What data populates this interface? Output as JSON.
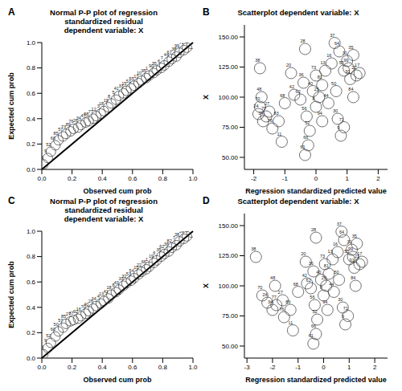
{
  "chart_data": [
    {
      "type": "scatter",
      "panel": "A",
      "title": [
        "Normal P-P plot of regression",
        "standardized residual",
        "dependent variable: X"
      ],
      "x_label": "Observed cum prob",
      "y_label": "Expected cum prob",
      "xlim": [
        0,
        1
      ],
      "ylim": [
        0,
        1
      ],
      "xticks": [
        {
          "value": 0,
          "label": "0.0"
        },
        {
          "value": 0.2,
          "label": "0.2"
        },
        {
          "value": 0.4,
          "label": "0.4"
        },
        {
          "value": 0.6,
          "label": "0.6"
        },
        {
          "value": 0.8,
          "label": "0.8"
        },
        {
          "value": 1,
          "label": "1.0"
        }
      ],
      "yticks": [
        {
          "value": 0,
          "label": "0.0"
        },
        {
          "value": 0.2,
          "label": "0.2"
        },
        {
          "value": 0.4,
          "label": "0.4"
        },
        {
          "value": 0.6,
          "label": "0.6"
        },
        {
          "value": 0.8,
          "label": "0.8"
        },
        {
          "value": 1,
          "label": "1.0"
        }
      ],
      "reference_line": {
        "x": [
          0,
          1
        ],
        "y": [
          0,
          1
        ]
      },
      "x": [
        0.01,
        0.04,
        0.06,
        0.09,
        0.11,
        0.14,
        0.16,
        0.19,
        0.21,
        0.24,
        0.26,
        0.29,
        0.31,
        0.34,
        0.36,
        0.39,
        0.41,
        0.44,
        0.46,
        0.49,
        0.51,
        0.54,
        0.56,
        0.59,
        0.61,
        0.64,
        0.66,
        0.69,
        0.71,
        0.74,
        0.76,
        0.79,
        0.81,
        0.84,
        0.86,
        0.89,
        0.91,
        0.94,
        0.96,
        0.99
      ],
      "y": [
        0.04,
        0.09,
        0.14,
        0.19,
        0.23,
        0.26,
        0.28,
        0.3,
        0.32,
        0.33,
        0.35,
        0.37,
        0.38,
        0.4,
        0.42,
        0.44,
        0.46,
        0.49,
        0.52,
        0.55,
        0.58,
        0.6,
        0.62,
        0.64,
        0.66,
        0.68,
        0.7,
        0.72,
        0.74,
        0.76,
        0.78,
        0.8,
        0.82,
        0.85,
        0.87,
        0.89,
        0.92,
        0.94,
        0.96,
        0.99
      ],
      "point_labels": [
        "46",
        "9",
        "52",
        "60",
        "85",
        "57",
        "73",
        "89",
        "76",
        "26",
        "34",
        "47",
        "58",
        "77",
        "12",
        "3",
        "18",
        "19",
        "8",
        "5",
        "41",
        "33",
        "15",
        "51",
        "55",
        "17",
        "10",
        "95",
        "1",
        "90",
        "35",
        "6",
        "7",
        "44",
        "67",
        "38",
        "99",
        "72",
        "29",
        "28"
      ]
    },
    {
      "type": "scatter",
      "panel": "B",
      "title": [
        "Scatterplot dependent variable: X"
      ],
      "x_label": "Regression standardized predicted value",
      "y_label": "X",
      "xlim": [
        -2.3,
        2.3
      ],
      "ylim": [
        40,
        160
      ],
      "xticks": [
        -2,
        -1,
        0,
        1,
        2
      ],
      "yticks": [
        {
          "value": 50,
          "label": "50.00"
        },
        {
          "value": 75,
          "label": "75.00"
        },
        {
          "value": 100,
          "label": "100.00"
        },
        {
          "value": 125,
          "label": "125.00"
        },
        {
          "value": 150,
          "label": "150.00"
        }
      ],
      "x": [
        -1.8,
        -1.75,
        -1.8,
        -1.85,
        -1.7,
        -1.6,
        -1.5,
        -1.4,
        -1.2,
        -1.1,
        -1.0,
        -0.8,
        -0.7,
        -0.5,
        -0.4,
        -0.35,
        -0.3,
        -0.2,
        -0.25,
        -0.35,
        -0.1,
        0.0,
        0.0,
        0.1,
        0.2,
        0.2,
        0.3,
        0.4,
        0.5,
        0.6,
        0.65,
        0.7,
        0.8,
        0.9,
        1.0,
        1.1,
        1.2,
        1.3,
        1.2,
        0.9,
        1.4,
        0.75,
        1.05
      ],
      "y": [
        124,
        100,
        92,
        86,
        80,
        84,
        88,
        74,
        80,
        63,
        95,
        120,
        102,
        98,
        112,
        140,
        84,
        72,
        60,
        52,
        105,
        92,
        118,
        100,
        110,
        80,
        122,
        95,
        128,
        145,
        105,
        82,
        68,
        122,
        130,
        115,
        135,
        118,
        100,
        75,
        120,
        138,
        124
      ],
      "point_labels": [
        "38",
        "48",
        "70",
        "24",
        "34",
        "77",
        "27",
        "76",
        "83",
        "11",
        "68",
        "20",
        "42",
        "62",
        "36",
        "28",
        "56",
        "52",
        "66",
        "61",
        "40",
        "8",
        "73",
        "25",
        "81",
        "94",
        "13",
        "44",
        "16",
        "37",
        "50",
        "30",
        "9",
        "55",
        "31",
        "91",
        "35",
        "21",
        "84",
        "71",
        "17",
        "64",
        "99"
      ]
    },
    {
      "type": "scatter",
      "panel": "C",
      "title": [
        "Normal P-P plot of regression",
        "standardized residual",
        "dependent variable: X"
      ],
      "x_label": "Observed cum prob",
      "y_label": "Expected cum prob",
      "xlim": [
        0,
        1
      ],
      "ylim": [
        0,
        1
      ],
      "xticks": [
        {
          "value": 0,
          "label": "0.0"
        },
        {
          "value": 0.2,
          "label": "0.2"
        },
        {
          "value": 0.4,
          "label": "0.4"
        },
        {
          "value": 0.6,
          "label": "0.6"
        },
        {
          "value": 0.8,
          "label": "0.8"
        },
        {
          "value": 1,
          "label": "1.0"
        }
      ],
      "yticks": [
        {
          "value": 0,
          "label": "0.0"
        },
        {
          "value": 0.2,
          "label": "0.2"
        },
        {
          "value": 0.4,
          "label": "0.4"
        },
        {
          "value": 0.6,
          "label": "0.6"
        },
        {
          "value": 0.8,
          "label": "0.8"
        },
        {
          "value": 1,
          "label": "1.0"
        }
      ],
      "reference_line": {
        "x": [
          0,
          1
        ],
        "y": [
          0,
          1
        ]
      },
      "x": [
        0.01,
        0.04,
        0.06,
        0.09,
        0.11,
        0.14,
        0.16,
        0.19,
        0.21,
        0.24,
        0.26,
        0.29,
        0.31,
        0.34,
        0.36,
        0.39,
        0.41,
        0.44,
        0.46,
        0.49,
        0.51,
        0.54,
        0.56,
        0.59,
        0.61,
        0.64,
        0.66,
        0.69,
        0.71,
        0.74,
        0.76,
        0.79,
        0.81,
        0.84,
        0.86,
        0.89,
        0.91,
        0.94,
        0.96,
        0.99
      ],
      "y": [
        0.03,
        0.08,
        0.12,
        0.17,
        0.21,
        0.24,
        0.27,
        0.29,
        0.3,
        0.31,
        0.33,
        0.35,
        0.37,
        0.39,
        0.41,
        0.43,
        0.45,
        0.47,
        0.5,
        0.52,
        0.54,
        0.57,
        0.59,
        0.61,
        0.63,
        0.66,
        0.68,
        0.7,
        0.72,
        0.75,
        0.77,
        0.8,
        0.82,
        0.84,
        0.87,
        0.89,
        0.92,
        0.94,
        0.96,
        0.99
      ],
      "point_labels": [
        "46",
        "9",
        "52",
        "60",
        "50",
        "57",
        "85",
        "27",
        "37",
        "92",
        "16",
        "70",
        "40",
        "26",
        "34",
        "4",
        "13",
        "41",
        "18",
        "8",
        "43",
        "33",
        "32",
        "53",
        "54",
        "15",
        "22",
        "66",
        "1",
        "19",
        "6",
        "35",
        "62",
        "36",
        "82",
        "7",
        "38",
        "39",
        "28",
        "20"
      ]
    },
    {
      "type": "scatter",
      "panel": "D",
      "title": [
        "Scatterplot dependent variable: X"
      ],
      "x_label": "Regression standardized predicted value",
      "y_label": "X",
      "xlim": [
        -3.1,
        2.5
      ],
      "ylim": [
        40,
        160
      ],
      "xticks": [
        -3,
        -2,
        -1,
        0,
        1,
        2
      ],
      "yticks": [
        {
          "value": 50,
          "label": "50.00"
        },
        {
          "value": 75,
          "label": "75.00"
        },
        {
          "value": 100,
          "label": "100.00"
        },
        {
          "value": 125,
          "label": "125.00"
        },
        {
          "value": 150,
          "label": "150.00"
        }
      ],
      "x": [
        -2.65,
        -1.9,
        -2.4,
        -2.2,
        -2.0,
        -1.85,
        -1.6,
        -1.55,
        -1.3,
        -1.2,
        -1.0,
        -0.7,
        -0.65,
        -0.5,
        -0.4,
        -0.3,
        -0.35,
        -0.25,
        -0.3,
        -0.4,
        -0.1,
        0.0,
        0.05,
        0.1,
        0.2,
        0.15,
        0.35,
        0.4,
        0.55,
        0.7,
        0.6,
        0.75,
        0.85,
        1.0,
        1.1,
        1.2,
        1.3,
        1.4,
        1.25,
        0.95,
        1.5,
        0.8,
        1.15
      ],
      "y": [
        124,
        100,
        92,
        86,
        80,
        84,
        88,
        74,
        80,
        63,
        95,
        120,
        102,
        98,
        112,
        140,
        84,
        72,
        60,
        52,
        105,
        92,
        118,
        100,
        110,
        80,
        122,
        95,
        128,
        145,
        105,
        82,
        68,
        122,
        130,
        115,
        135,
        118,
        100,
        75,
        120,
        138,
        124
      ],
      "point_labels": [
        "38",
        "48",
        "70",
        "24",
        "34",
        "77",
        "27",
        "76",
        "83",
        "11",
        "68",
        "20",
        "42",
        "62",
        "36",
        "28",
        "56",
        "52",
        "66",
        "61",
        "40",
        "8",
        "73",
        "25",
        "81",
        "94",
        "13",
        "44",
        "16",
        "37",
        "50",
        "30",
        "9",
        "55",
        "31",
        "91",
        "35",
        "21",
        "84",
        "71",
        "17",
        "64",
        "99"
      ]
    }
  ]
}
